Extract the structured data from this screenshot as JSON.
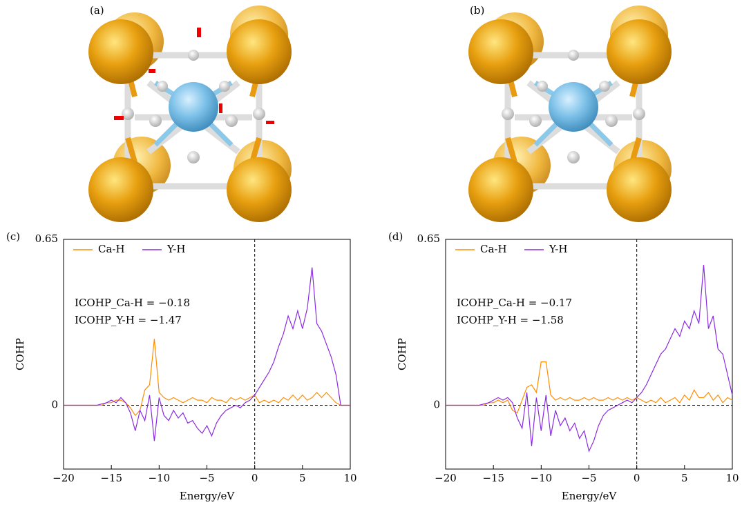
{
  "structures": [
    {
      "label": "(a)"
    },
    {
      "label": "(b)"
    }
  ],
  "chart_data": [
    {
      "type": "line",
      "panel": "(c)",
      "x_label": "Energy/eV",
      "y_label": "COHP",
      "annotations": [
        "ICOHP_Ca-H = −0.18",
        "ICOHP_Y-H = −1.47"
      ],
      "xlim": [
        -20,
        10
      ],
      "ylim": [
        -0.25,
        0.65
      ],
      "xticks": [
        {
          "value": -20,
          "label": "−20"
        },
        {
          "value": -15,
          "label": "−15"
        },
        {
          "value": -10,
          "label": "−10"
        },
        {
          "value": -5,
          "label": "−5"
        },
        0,
        5,
        10
      ],
      "yticks": [
        0,
        0.65
      ],
      "x": [
        -20,
        -19.5,
        -19,
        -18.5,
        -18,
        -17.5,
        -17,
        -16.5,
        -16,
        -15.5,
        -15,
        -14.5,
        -14,
        -13.5,
        -13,
        -12.5,
        -12,
        -11.5,
        -11,
        -10.5,
        -10,
        -9.5,
        -9,
        -8.5,
        -8,
        -7.5,
        -7,
        -6.5,
        -6,
        -5.5,
        -5,
        -4.5,
        -4,
        -3.5,
        -3,
        -2.5,
        -2,
        -1.5,
        -1,
        -0.5,
        0,
        0.5,
        1,
        1.5,
        2,
        2.5,
        3,
        3.5,
        4,
        4.5,
        5,
        5.5,
        6,
        6.5,
        7,
        7.5,
        8,
        8.5,
        9,
        9.5,
        10
      ],
      "series": [
        {
          "name": "Ca-H",
          "color": "#ff8c00",
          "values": [
            0,
            0,
            0,
            0,
            0,
            0,
            0,
            0,
            0,
            0.01,
            0.01,
            0.02,
            0.02,
            0.01,
            -0.01,
            -0.04,
            -0.02,
            0.06,
            0.08,
            0.26,
            0.05,
            0.03,
            0.02,
            0.03,
            0.02,
            0.01,
            0.02,
            0.03,
            0.02,
            0.02,
            0.01,
            0.03,
            0.02,
            0.02,
            0.01,
            0.03,
            0.02,
            0.03,
            0.02,
            0.03,
            0.04,
            0.01,
            0.02,
            0.01,
            0.02,
            0.01,
            0.03,
            0.02,
            0.04,
            0.02,
            0.04,
            0.02,
            0.03,
            0.05,
            0.03,
            0.05,
            0.03,
            0.01,
            0,
            0,
            0
          ]
        },
        {
          "name": "Y-H",
          "color": "#8a2be2",
          "values": [
            0,
            0,
            0,
            0,
            0,
            0,
            0,
            0,
            0.005,
            0.01,
            0.02,
            0.01,
            0.03,
            0.01,
            -0.03,
            -0.1,
            -0.02,
            -0.06,
            0.04,
            -0.14,
            0.03,
            -0.04,
            -0.06,
            -0.02,
            -0.05,
            -0.03,
            -0.07,
            -0.06,
            -0.09,
            -0.11,
            -0.08,
            -0.12,
            -0.07,
            -0.04,
            -0.02,
            -0.01,
            0,
            -0.01,
            0.01,
            0.02,
            0.04,
            0.07,
            0.1,
            0.13,
            0.17,
            0.23,
            0.28,
            0.35,
            0.3,
            0.37,
            0.3,
            0.38,
            0.54,
            0.32,
            0.29,
            0.24,
            0.19,
            0.12,
            0,
            0,
            0
          ]
        }
      ]
    },
    {
      "type": "line",
      "panel": "(d)",
      "x_label": "Energy/eV",
      "y_label": "COHP",
      "annotations": [
        "ICOHP_Ca-H = −0.17",
        "ICOHP_Y-H = −1.58"
      ],
      "xlim": [
        -20,
        10
      ],
      "ylim": [
        -0.25,
        0.65
      ],
      "xticks": [
        {
          "value": -20,
          "label": "−20"
        },
        {
          "value": -15,
          "label": "−15"
        },
        {
          "value": -10,
          "label": "−10"
        },
        {
          "value": -5,
          "label": "−5"
        },
        0,
        5,
        10
      ],
      "yticks": [
        0,
        0.65
      ],
      "x": [
        -20,
        -19.5,
        -19,
        -18.5,
        -18,
        -17.5,
        -17,
        -16.5,
        -16,
        -15.5,
        -15,
        -14.5,
        -14,
        -13.5,
        -13,
        -12.5,
        -12,
        -11.5,
        -11,
        -10.5,
        -10,
        -9.5,
        -9,
        -8.5,
        -8,
        -7.5,
        -7,
        -6.5,
        -6,
        -5.5,
        -5,
        -4.5,
        -4,
        -3.5,
        -3,
        -2.5,
        -2,
        -1.5,
        -1,
        -0.5,
        0,
        0.5,
        1,
        1.5,
        2,
        2.5,
        3,
        3.5,
        4,
        4.5,
        5,
        5.5,
        6,
        6.5,
        7,
        7.5,
        8,
        8.5,
        9,
        9.5,
        10
      ],
      "series": [
        {
          "name": "Ca-H",
          "color": "#ff8c00",
          "values": [
            0,
            0,
            0,
            0,
            0,
            0,
            0,
            0,
            0,
            0.01,
            0.01,
            0.02,
            0.01,
            0.02,
            -0.02,
            -0.03,
            0.02,
            0.07,
            0.08,
            0.05,
            0.17,
            0.17,
            0.04,
            0.02,
            0.03,
            0.02,
            0.03,
            0.02,
            0.02,
            0.03,
            0.02,
            0.03,
            0.02,
            0.02,
            0.03,
            0.02,
            0.03,
            0.02,
            0.03,
            0.02,
            0.03,
            0.02,
            0.01,
            0.02,
            0.01,
            0.03,
            0.01,
            0.02,
            0.03,
            0.01,
            0.04,
            0.02,
            0.06,
            0.03,
            0.03,
            0.05,
            0.02,
            0.04,
            0.01,
            0.03,
            0.02
          ]
        },
        {
          "name": "Y-H",
          "color": "#8a2be2",
          "values": [
            0,
            0,
            0,
            0,
            0,
            0,
            0,
            0,
            0.005,
            0.01,
            0.02,
            0.03,
            0.02,
            0.03,
            0.01,
            -0.05,
            -0.09,
            0.05,
            -0.16,
            0.03,
            -0.1,
            0.04,
            -0.12,
            -0.02,
            -0.08,
            -0.05,
            -0.1,
            -0.07,
            -0.13,
            -0.1,
            -0.18,
            -0.14,
            -0.08,
            -0.04,
            -0.02,
            -0.01,
            0,
            0.01,
            0.02,
            0.01,
            0.03,
            0.05,
            0.08,
            0.12,
            0.16,
            0.2,
            0.22,
            0.26,
            0.3,
            0.27,
            0.33,
            0.3,
            0.37,
            0.32,
            0.55,
            0.3,
            0.35,
            0.22,
            0.2,
            0.12,
            0.04
          ]
        }
      ]
    }
  ]
}
